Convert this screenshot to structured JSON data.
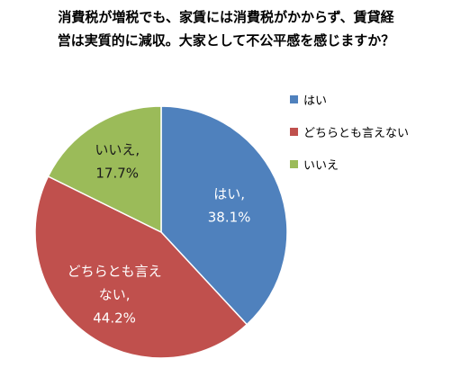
{
  "chart_data": {
    "type": "pie",
    "title_lines": [
      "消費税が増税でも、家賃には消費税がかからず、賃貸経",
      "営は実質的に減収。大家として不公平感を感じますか？"
    ],
    "categories": [
      "はい",
      "どちらとも言えない",
      "いいえ"
    ],
    "values": [
      38.1,
      44.2,
      17.7
    ],
    "data_labels": [
      [
        "はい,",
        "38.1%"
      ],
      [
        "どちらとも言え",
        "ない,",
        "44.2%"
      ],
      [
        "いいえ,",
        "17.7%"
      ]
    ],
    "colors": [
      "#4F81BD",
      "#C0504D",
      "#9BBB59"
    ],
    "legend_position": "right"
  }
}
